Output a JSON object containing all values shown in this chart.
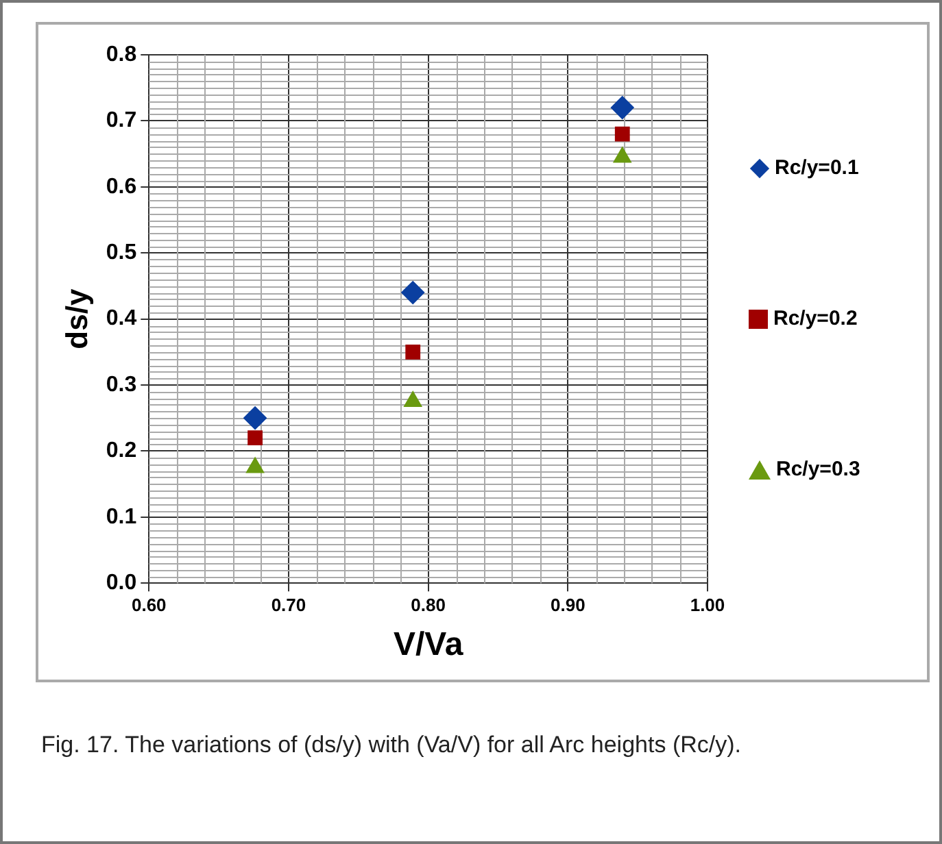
{
  "chart_data": {
    "type": "scatter",
    "xlabel": "V/Va",
    "ylabel": "ds/y",
    "series": [
      {
        "name": "Rc/y=0.1",
        "color": "#0b3fa0",
        "marker": "diamond",
        "x": [
          0.676,
          0.789,
          0.939
        ],
        "values": [
          0.25,
          0.44,
          0.72
        ]
      },
      {
        "name": "Rc/y=0.2",
        "color": "#a00000",
        "marker": "square",
        "x": [
          0.676,
          0.789,
          0.939
        ],
        "values": [
          0.22,
          0.35,
          0.68
        ]
      },
      {
        "name": "Rc/y=0.3",
        "color": "#6a9a10",
        "marker": "triangle",
        "x": [
          0.676,
          0.789,
          0.939
        ],
        "values": [
          0.175,
          0.275,
          0.645
        ]
      }
    ],
    "xlim": [
      0.6,
      1.0
    ],
    "xticks": [
      {
        "value": 0.6,
        "label": "0.60"
      },
      {
        "value": 0.7,
        "label": "0.70"
      },
      {
        "value": 0.8,
        "label": "0.80"
      },
      {
        "value": 0.9,
        "label": "0.90"
      },
      {
        "value": 1.0,
        "label": "1.00"
      }
    ],
    "ylim": [
      0,
      0.8
    ],
    "yticks": [
      {
        "value": 0,
        "label": "0.0"
      },
      0.1,
      0.2,
      0.3,
      0.4,
      0.5,
      0.6,
      0.7,
      0.8
    ],
    "grid": true,
    "legend": "right",
    "annotations": [
      "Fig. 17. The variations of (ds/y) with (Va/V) for all Arc heights (Rc/y)."
    ]
  }
}
